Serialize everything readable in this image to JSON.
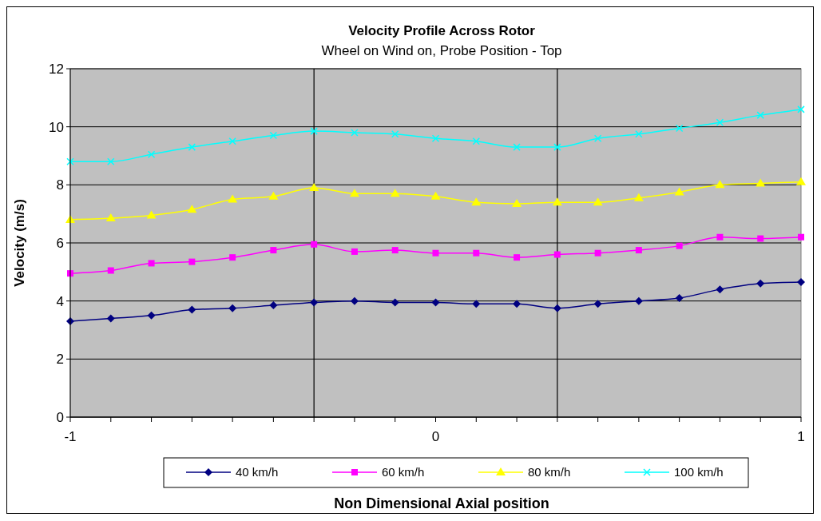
{
  "chart_data": {
    "type": "line",
    "title": "Velocity Profile Across Rotor",
    "subtitle": "Wheel on Wind on, Probe Position - Top",
    "xlabel": "Non Dimensional Axial position",
    "ylabel": "Velocity (m/s)",
    "x": [
      -1,
      -0.889,
      -0.778,
      -0.667,
      -0.556,
      -0.444,
      -0.333,
      -0.222,
      -0.111,
      0,
      0.111,
      0.222,
      0.333,
      0.444,
      0.556,
      0.667,
      0.778,
      0.889,
      1
    ],
    "xlim": [
      -1,
      1
    ],
    "xticks": [
      -1,
      {
        "value": -0.889,
        "label": null
      },
      {
        "value": -0.778,
        "label": null
      },
      {
        "value": -0.667,
        "label": null
      },
      {
        "value": -0.556,
        "label": null
      },
      {
        "value": -0.444,
        "label": null
      },
      {
        "value": -0.333,
        "label": null
      },
      {
        "value": -0.222,
        "label": null
      },
      {
        "value": -0.111,
        "label": null
      },
      0,
      {
        "value": 0.111,
        "label": null
      },
      {
        "value": 0.222,
        "label": null
      },
      {
        "value": 0.333,
        "label": null
      },
      {
        "value": 0.444,
        "label": null
      },
      {
        "value": 0.556,
        "label": null
      },
      {
        "value": 0.667,
        "label": null
      },
      {
        "value": 0.778,
        "label": null
      },
      {
        "value": 0.889,
        "label": null
      },
      1
    ],
    "ylim": [
      0,
      12
    ],
    "yticks": [
      0,
      2,
      4,
      6,
      8,
      10,
      12
    ],
    "grid": "y",
    "legend": "bottom",
    "line_style": "solid",
    "ref_lines": [
      {
        "axis": "x",
        "value": -0.333,
        "color": "#000000"
      },
      {
        "axis": "x",
        "value": 0.333,
        "color": "#000000"
      }
    ],
    "series": [
      {
        "name": "40 km/h",
        "color": "#000080",
        "marker": "diamond",
        "values": [
          3.3,
          3.4,
          3.5,
          3.7,
          3.75,
          3.85,
          3.95,
          4.0,
          3.95,
          3.95,
          3.9,
          3.9,
          3.75,
          3.9,
          4.0,
          4.1,
          4.4,
          4.6,
          4.65
        ]
      },
      {
        "name": "60 km/h",
        "color": "#ff00ff",
        "marker": "square",
        "values": [
          4.95,
          5.05,
          5.3,
          5.35,
          5.5,
          5.75,
          5.95,
          5.7,
          5.75,
          5.65,
          5.65,
          5.5,
          5.6,
          5.65,
          5.75,
          5.9,
          6.2,
          6.15,
          6.2
        ]
      },
      {
        "name": "80 km/h",
        "color": "#ffff00",
        "marker": "triangle",
        "values": [
          6.8,
          6.85,
          6.95,
          7.15,
          7.5,
          7.6,
          7.9,
          7.7,
          7.7,
          7.6,
          7.4,
          7.35,
          7.4,
          7.4,
          7.55,
          7.75,
          8.0,
          8.05,
          8.1
        ]
      },
      {
        "name": "100 km/h",
        "color": "#00ffff",
        "marker": "cross",
        "values": [
          8.8,
          8.8,
          9.05,
          9.3,
          9.5,
          9.7,
          9.85,
          9.8,
          9.75,
          9.6,
          9.5,
          9.3,
          9.3,
          9.6,
          9.75,
          9.95,
          10.15,
          10.4,
          10.6
        ]
      }
    ]
  }
}
